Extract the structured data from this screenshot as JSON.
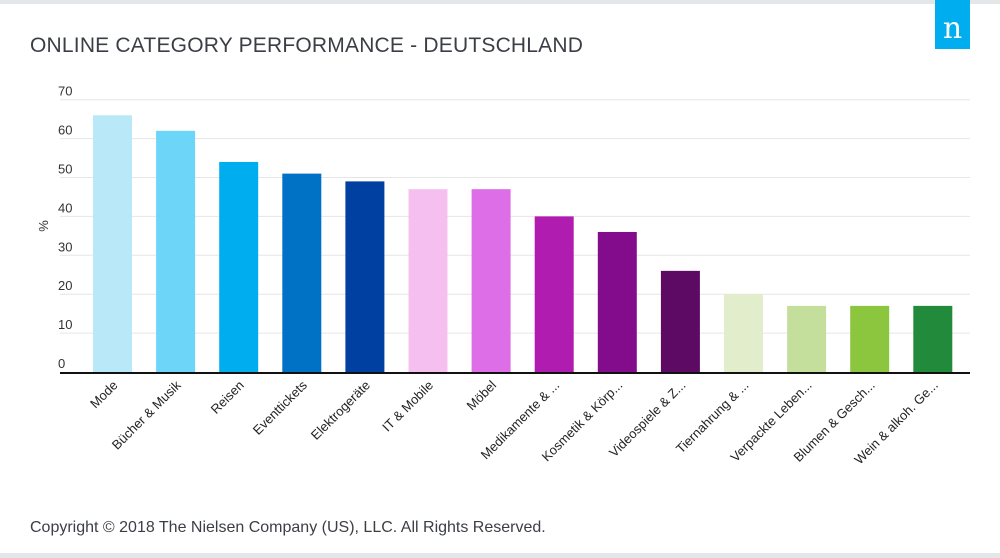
{
  "header": {
    "title": "ONLINE CATEGORY PERFORMANCE - DEUTSCHLAND"
  },
  "logo": {
    "letter": "n",
    "color": "#00aeef"
  },
  "footer": {
    "copyright": "Copyright © 2018 The Nielsen Company (US), LLC. All Rights Reserved."
  },
  "chart_data": {
    "type": "bar",
    "title": "ONLINE CATEGORY PERFORMANCE - DEUTSCHLAND",
    "ylabel": "%",
    "xlabel": "",
    "ylim": [
      0,
      70
    ],
    "yticks": [
      0,
      10,
      20,
      30,
      40,
      50,
      60,
      70
    ],
    "grid": true,
    "categories": [
      "Mode",
      "Bücher & Musik",
      "Reisen",
      "Eventtickets",
      "Elektrogeräte",
      "IT & Mobile",
      "Möbel",
      "Medikamente & ...",
      "Kosmetik & Körp...",
      "Videospiele & Z...",
      "Tiernahrung & ...",
      "Verpackte Leben...",
      "Blumen & Gesch...",
      "Wein & alkoh. Ge..."
    ],
    "values": [
      66,
      62,
      54,
      51,
      49,
      47,
      47,
      40,
      36,
      26,
      20,
      17,
      17,
      17
    ],
    "colors": [
      "#b9e8f8",
      "#6dd6f8",
      "#00aeef",
      "#0072c6",
      "#0040a0",
      "#f5c0f0",
      "#dd6ee8",
      "#b01cb0",
      "#820c8c",
      "#5c0a64",
      "#e2edcc",
      "#c4df9c",
      "#8cc63f",
      "#228b3b"
    ]
  }
}
